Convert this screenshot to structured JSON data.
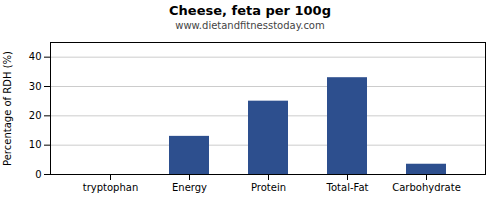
{
  "chart_data": {
    "type": "bar",
    "title": "Cheese, feta per 100g",
    "subtitle": "www.dietandfitnesstoday.com",
    "ylabel": "Percentage of RDH (%)",
    "categories": [
      "tryptophan",
      "Energy",
      "Protein",
      "Total-Fat",
      "Carbohydrate"
    ],
    "values": [
      0.0,
      13.0,
      25.0,
      33.0,
      3.5
    ],
    "color": "#2d4f8e",
    "ylim": [
      0,
      45
    ],
    "yticks": [
      0,
      10,
      20,
      30,
      40
    ],
    "grid": true
  }
}
